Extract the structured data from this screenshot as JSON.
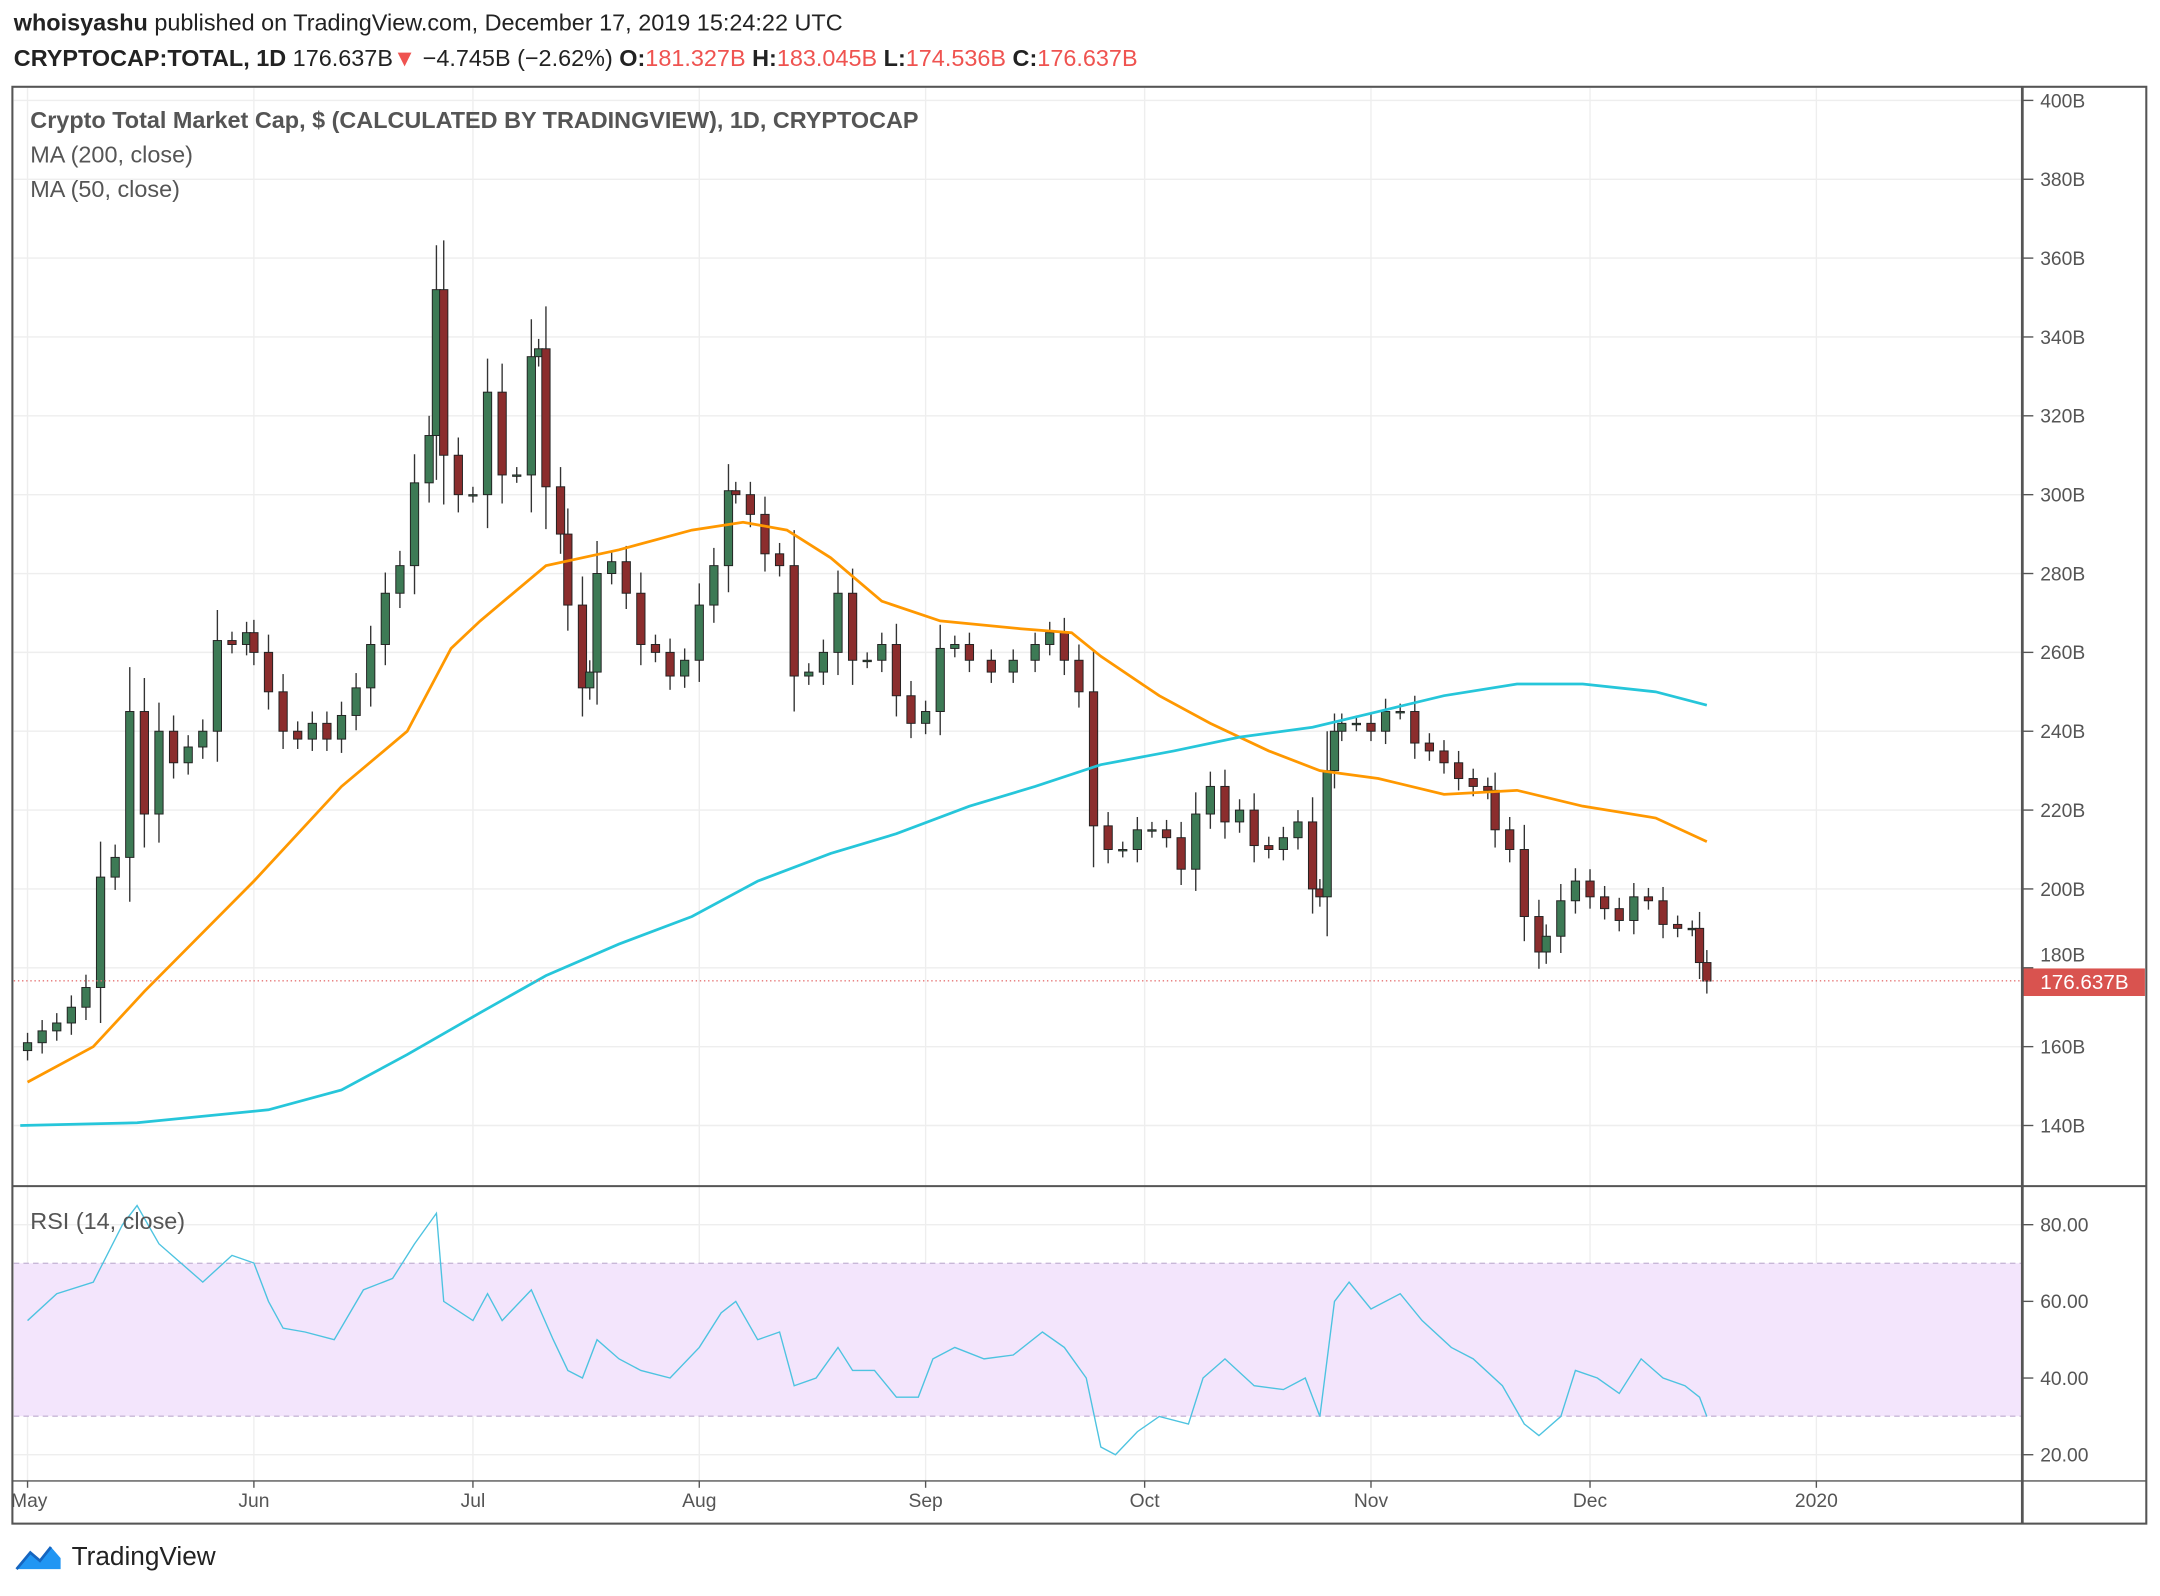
{
  "header": {
    "author": "whoisyashu",
    "published": "published on TradingView.com, December 17, 2019 15:24:22 UTC",
    "symbol": "CRYPTOCAP:TOTAL, 1D",
    "last": "176.637B",
    "change": "−4.745B (−2.62%)",
    "o_label": "O:",
    "o": "181.327B",
    "h_label": "H:",
    "h": "183.045B",
    "l_label": "L:",
    "l": "174.536B",
    "c_label": "C:",
    "c": "176.637B"
  },
  "legend": {
    "title": "Crypto Total Market Cap, $ (CALCULATED BY TRADINGVIEW), 1D, CRYPTOCAP",
    "ma200": "MA (200, close)",
    "ma50": "MA (50, close)",
    "rsi": "RSI (14, close)"
  },
  "footer": {
    "logo": "TradingView"
  },
  "colors": {
    "up": "#3d7a55",
    "down": "#8b2d2d",
    "ma50": "#ff9800",
    "ma200": "#26c6da",
    "rsi": "#4dc3e0",
    "rsi_band": "#f3e5fc",
    "last_price": "#d9534f"
  },
  "chart_data": [
    {
      "type": "candlestick",
      "title": "Crypto Total Market Cap, $ (CALCULATED BY TRADINGVIEW), 1D, CRYPTOCAP",
      "ylim": [
        125,
        405
      ],
      "y_ticks": [
        "140B",
        "160B",
        "180B",
        "200B",
        "220B",
        "240B",
        "260B",
        "280B",
        "300B",
        "320B",
        "340B",
        "360B",
        "380B",
        "400B"
      ],
      "y_tick_values": [
        140,
        160,
        180,
        200,
        220,
        240,
        260,
        280,
        300,
        320,
        340,
        360,
        380,
        400
      ],
      "x_ticks": [
        "May",
        "Jun",
        "Jul",
        "Aug",
        "Sep",
        "Oct",
        "Nov",
        "Dec",
        "2020"
      ],
      "x_tick_dates": [
        "2019-05-01",
        "2019-06-01",
        "2019-07-01",
        "2019-08-01",
        "2019-09-01",
        "2019-10-01",
        "2019-11-01",
        "2019-12-01",
        "2020-01-01"
      ],
      "last_price_label": "176.637B",
      "last_price": 176.637,
      "close": [
        [
          "2019-05-01",
          161
        ],
        [
          "2019-05-03",
          164
        ],
        [
          "2019-05-05",
          166
        ],
        [
          "2019-05-07",
          170
        ],
        [
          "2019-05-09",
          175
        ],
        [
          "2019-05-11",
          203
        ],
        [
          "2019-05-13",
          208
        ],
        [
          "2019-05-15",
          245
        ],
        [
          "2019-05-17",
          219
        ],
        [
          "2019-05-19",
          240
        ],
        [
          "2019-05-21",
          232
        ],
        [
          "2019-05-23",
          236
        ],
        [
          "2019-05-25",
          240
        ],
        [
          "2019-05-27",
          263
        ],
        [
          "2019-05-29",
          262
        ],
        [
          "2019-05-31",
          265
        ],
        [
          "2019-06-01",
          260
        ],
        [
          "2019-06-03",
          250
        ],
        [
          "2019-06-05",
          240
        ],
        [
          "2019-06-07",
          238
        ],
        [
          "2019-06-09",
          242
        ],
        [
          "2019-06-11",
          238
        ],
        [
          "2019-06-13",
          244
        ],
        [
          "2019-06-15",
          251
        ],
        [
          "2019-06-17",
          262
        ],
        [
          "2019-06-19",
          275
        ],
        [
          "2019-06-21",
          282
        ],
        [
          "2019-06-23",
          303
        ],
        [
          "2019-06-25",
          315
        ],
        [
          "2019-06-26",
          352
        ],
        [
          "2019-06-27",
          310
        ],
        [
          "2019-06-29",
          300
        ],
        [
          "2019-07-01",
          300
        ],
        [
          "2019-07-03",
          326
        ],
        [
          "2019-07-05",
          305
        ],
        [
          "2019-07-07",
          305
        ],
        [
          "2019-07-09",
          335
        ],
        [
          "2019-07-10",
          337
        ],
        [
          "2019-07-11",
          302
        ],
        [
          "2019-07-13",
          290
        ],
        [
          "2019-07-14",
          272
        ],
        [
          "2019-07-16",
          251
        ],
        [
          "2019-07-17",
          255
        ],
        [
          "2019-07-18",
          280
        ],
        [
          "2019-07-20",
          283
        ],
        [
          "2019-07-22",
          275
        ],
        [
          "2019-07-24",
          262
        ],
        [
          "2019-07-26",
          260
        ],
        [
          "2019-07-28",
          254
        ],
        [
          "2019-07-30",
          258
        ],
        [
          "2019-08-01",
          272
        ],
        [
          "2019-08-03",
          282
        ],
        [
          "2019-08-05",
          301
        ],
        [
          "2019-08-06",
          300
        ],
        [
          "2019-08-08",
          295
        ],
        [
          "2019-08-10",
          285
        ],
        [
          "2019-08-12",
          282
        ],
        [
          "2019-08-14",
          254
        ],
        [
          "2019-08-16",
          255
        ],
        [
          "2019-08-18",
          260
        ],
        [
          "2019-08-20",
          275
        ],
        [
          "2019-08-22",
          258
        ],
        [
          "2019-08-24",
          258
        ],
        [
          "2019-08-26",
          262
        ],
        [
          "2019-08-28",
          249
        ],
        [
          "2019-08-30",
          242
        ],
        [
          "2019-09-01",
          245
        ],
        [
          "2019-09-03",
          261
        ],
        [
          "2019-09-05",
          262
        ],
        [
          "2019-09-07",
          258
        ],
        [
          "2019-09-10",
          255
        ],
        [
          "2019-09-13",
          258
        ],
        [
          "2019-09-16",
          262
        ],
        [
          "2019-09-18",
          265
        ],
        [
          "2019-09-20",
          258
        ],
        [
          "2019-09-22",
          250
        ],
        [
          "2019-09-24",
          216
        ],
        [
          "2019-09-26",
          210
        ],
        [
          "2019-09-28",
          210
        ],
        [
          "2019-09-30",
          215
        ],
        [
          "2019-10-02",
          215
        ],
        [
          "2019-10-04",
          213
        ],
        [
          "2019-10-06",
          205
        ],
        [
          "2019-10-08",
          219
        ],
        [
          "2019-10-10",
          226
        ],
        [
          "2019-10-12",
          217
        ],
        [
          "2019-10-14",
          220
        ],
        [
          "2019-10-16",
          211
        ],
        [
          "2019-10-18",
          210
        ],
        [
          "2019-10-20",
          213
        ],
        [
          "2019-10-22",
          217
        ],
        [
          "2019-10-24",
          200
        ],
        [
          "2019-10-25",
          198
        ],
        [
          "2019-10-26",
          230
        ],
        [
          "2019-10-27",
          240
        ],
        [
          "2019-10-28",
          242
        ],
        [
          "2019-10-30",
          242
        ],
        [
          "2019-11-01",
          240
        ],
        [
          "2019-11-03",
          245
        ],
        [
          "2019-11-05",
          245
        ],
        [
          "2019-11-07",
          237
        ],
        [
          "2019-11-09",
          235
        ],
        [
          "2019-11-11",
          232
        ],
        [
          "2019-11-13",
          228
        ],
        [
          "2019-11-15",
          226
        ],
        [
          "2019-11-17",
          225
        ],
        [
          "2019-11-18",
          215
        ],
        [
          "2019-11-20",
          210
        ],
        [
          "2019-11-22",
          193
        ],
        [
          "2019-11-24",
          184
        ],
        [
          "2019-11-25",
          188
        ],
        [
          "2019-11-27",
          197
        ],
        [
          "2019-11-29",
          202
        ],
        [
          "2019-12-01",
          198
        ],
        [
          "2019-12-03",
          195
        ],
        [
          "2019-12-05",
          192
        ],
        [
          "2019-12-07",
          198
        ],
        [
          "2019-12-09",
          197
        ],
        [
          "2019-12-11",
          191
        ],
        [
          "2019-12-13",
          190
        ],
        [
          "2019-12-15",
          190
        ],
        [
          "2019-12-16",
          181.327
        ],
        [
          "2019-12-17",
          176.637
        ]
      ],
      "series": [
        {
          "name": "MA (50, close)",
          "points": [
            [
              "2019-05-01",
              151
            ],
            [
              "2019-05-10",
              160
            ],
            [
              "2019-05-17",
              174
            ],
            [
              "2019-06-01",
              202
            ],
            [
              "2019-06-13",
              226
            ],
            [
              "2019-06-22",
              240
            ],
            [
              "2019-06-28",
              261
            ],
            [
              "2019-07-02",
              268
            ],
            [
              "2019-07-11",
              282
            ],
            [
              "2019-07-21",
              286
            ],
            [
              "2019-07-31",
              291
            ],
            [
              "2019-08-07",
              293
            ],
            [
              "2019-08-13",
              291
            ],
            [
              "2019-08-19",
              284
            ],
            [
              "2019-08-26",
              273
            ],
            [
              "2019-09-03",
              268
            ],
            [
              "2019-09-14",
              266
            ],
            [
              "2019-09-21",
              265
            ],
            [
              "2019-09-25",
              259
            ],
            [
              "2019-10-03",
              249
            ],
            [
              "2019-10-10",
              242
            ],
            [
              "2019-10-18",
              235
            ],
            [
              "2019-10-25",
              230
            ],
            [
              "2019-11-02",
              228
            ],
            [
              "2019-11-11",
              224
            ],
            [
              "2019-11-21",
              225
            ],
            [
              "2019-11-30",
              221
            ],
            [
              "2019-12-10",
              218
            ],
            [
              "2019-12-17",
              212
            ]
          ]
        },
        {
          "name": "MA (200, close)",
          "points": [
            [
              "2019-04-30",
              140
            ],
            [
              "2019-05-16",
              140.7
            ],
            [
              "2019-06-03",
              144
            ],
            [
              "2019-06-13",
              149
            ],
            [
              "2019-06-22",
              158
            ],
            [
              "2019-07-02",
              168.6
            ],
            [
              "2019-07-11",
              178
            ],
            [
              "2019-07-21",
              186
            ],
            [
              "2019-07-31",
              193
            ],
            [
              "2019-08-09",
              202
            ],
            [
              "2019-08-19",
              209
            ],
            [
              "2019-08-28",
              214
            ],
            [
              "2019-09-07",
              221
            ],
            [
              "2019-09-16",
              226
            ],
            [
              "2019-09-25",
              231.5
            ],
            [
              "2019-10-05",
              235
            ],
            [
              "2019-10-14",
              238.5
            ],
            [
              "2019-10-24",
              241
            ],
            [
              "2019-11-02",
              245
            ],
            [
              "2019-11-11",
              249
            ],
            [
              "2019-11-21",
              252
            ],
            [
              "2019-11-30",
              252
            ],
            [
              "2019-12-10",
              250
            ],
            [
              "2019-12-17",
              246.6
            ]
          ]
        }
      ]
    },
    {
      "type": "line",
      "title": "RSI (14, close)",
      "ylim": [
        15,
        88
      ],
      "y_ticks": [
        "20.00",
        "40.00",
        "60.00",
        "80.00"
      ],
      "y_tick_values": [
        20,
        40,
        60,
        80
      ],
      "band": [
        30,
        70
      ],
      "series": [
        {
          "name": "RSI (14, close)",
          "points": [
            [
              "2019-05-01",
              55
            ],
            [
              "2019-05-05",
              62
            ],
            [
              "2019-05-10",
              65
            ],
            [
              "2019-05-14",
              80
            ],
            [
              "2019-05-16",
              85
            ],
            [
              "2019-05-19",
              75
            ],
            [
              "2019-05-22",
              70
            ],
            [
              "2019-05-25",
              65
            ],
            [
              "2019-05-29",
              72
            ],
            [
              "2019-06-01",
              70
            ],
            [
              "2019-06-03",
              60
            ],
            [
              "2019-06-05",
              53
            ],
            [
              "2019-06-08",
              52
            ],
            [
              "2019-06-12",
              50
            ],
            [
              "2019-06-16",
              63
            ],
            [
              "2019-06-20",
              66
            ],
            [
              "2019-06-23",
              75
            ],
            [
              "2019-06-26",
              83
            ],
            [
              "2019-06-27",
              60
            ],
            [
              "2019-07-01",
              55
            ],
            [
              "2019-07-03",
              62
            ],
            [
              "2019-07-05",
              55
            ],
            [
              "2019-07-09",
              63
            ],
            [
              "2019-07-12",
              50
            ],
            [
              "2019-07-14",
              42
            ],
            [
              "2019-07-16",
              40
            ],
            [
              "2019-07-18",
              50
            ],
            [
              "2019-07-21",
              45
            ],
            [
              "2019-07-24",
              42
            ],
            [
              "2019-07-28",
              40
            ],
            [
              "2019-08-01",
              48
            ],
            [
              "2019-08-04",
              57
            ],
            [
              "2019-08-06",
              60
            ],
            [
              "2019-08-09",
              50
            ],
            [
              "2019-08-12",
              52
            ],
            [
              "2019-08-14",
              38
            ],
            [
              "2019-08-17",
              40
            ],
            [
              "2019-08-20",
              48
            ],
            [
              "2019-08-22",
              42
            ],
            [
              "2019-08-25",
              42
            ],
            [
              "2019-08-28",
              35
            ],
            [
              "2019-08-31",
              35
            ],
            [
              "2019-09-02",
              45
            ],
            [
              "2019-09-05",
              48
            ],
            [
              "2019-09-09",
              45
            ],
            [
              "2019-09-13",
              46
            ],
            [
              "2019-09-17",
              52
            ],
            [
              "2019-09-20",
              48
            ],
            [
              "2019-09-23",
              40
            ],
            [
              "2019-09-25",
              22
            ],
            [
              "2019-09-27",
              20
            ],
            [
              "2019-09-30",
              26
            ],
            [
              "2019-10-03",
              30
            ],
            [
              "2019-10-07",
              28
            ],
            [
              "2019-10-09",
              40
            ],
            [
              "2019-10-12",
              45
            ],
            [
              "2019-10-16",
              38
            ],
            [
              "2019-10-20",
              37
            ],
            [
              "2019-10-23",
              40
            ],
            [
              "2019-10-25",
              30
            ],
            [
              "2019-10-27",
              60
            ],
            [
              "2019-10-29",
              65
            ],
            [
              "2019-11-01",
              58
            ],
            [
              "2019-11-05",
              62
            ],
            [
              "2019-11-08",
              55
            ],
            [
              "2019-11-12",
              48
            ],
            [
              "2019-11-15",
              45
            ],
            [
              "2019-11-19",
              38
            ],
            [
              "2019-11-22",
              28
            ],
            [
              "2019-11-24",
              25
            ],
            [
              "2019-11-27",
              30
            ],
            [
              "2019-11-29",
              42
            ],
            [
              "2019-12-02",
              40
            ],
            [
              "2019-12-05",
              36
            ],
            [
              "2019-12-08",
              45
            ],
            [
              "2019-12-11",
              40
            ],
            [
              "2019-12-14",
              38
            ],
            [
              "2019-12-16",
              35
            ],
            [
              "2019-12-17",
              30
            ]
          ]
        }
      ]
    }
  ]
}
